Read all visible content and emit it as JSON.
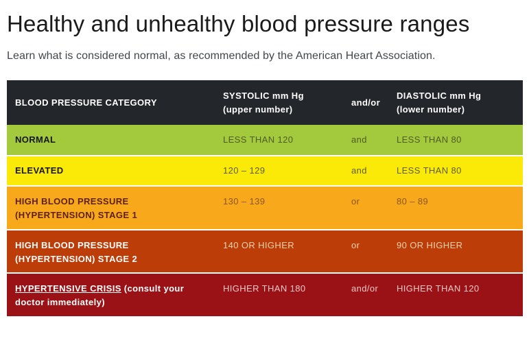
{
  "page": {
    "title": "Healthy and unhealthy blood pressure ranges",
    "subtitle": "Learn what is considered normal, as recommended by the American Heart Association.",
    "colors": {
      "background": "#ffffff",
      "title_text": "#1a1a1a",
      "subtitle_text": "#41464c"
    }
  },
  "table": {
    "header": {
      "category": "BLOOD PRESSURE CATEGORY",
      "systolic_line1": "SYSTOLIC mm Hg",
      "systolic_line2": "(upper number)",
      "connector": "and/or",
      "diastolic_line1": "DIASTOLIC mm Hg",
      "diastolic_line2": "(lower number)"
    },
    "header_colors": {
      "bg": "#23262a",
      "text": "#ffffff"
    },
    "rows": [
      {
        "category_main": "NORMAL",
        "category_extra": "",
        "systolic": "LESS THAN 120",
        "connector": "and",
        "diastolic": "LESS THAN 80",
        "colors": {
          "bg": "#a3c93d",
          "category_text": "#161616",
          "value_text": "#4f5c25"
        }
      },
      {
        "category_main": "ELEVATED",
        "category_extra": "",
        "systolic": "120 – 129",
        "connector": "and",
        "diastolic": "LESS THAN 80",
        "colors": {
          "bg": "#fbe907",
          "category_text": "#161616",
          "value_text": "#5d5d20"
        }
      },
      {
        "category_main": "HIGH BLOOD PRESSURE (HYPERTENSION) STAGE 1",
        "category_extra": "",
        "systolic": "130 – 139",
        "connector": "or",
        "diastolic": "80 – 89",
        "colors": {
          "bg": "#f7a81b",
          "category_text": "#5e1f10",
          "value_text": "#8f5520"
        }
      },
      {
        "category_main": "HIGH BLOOD PRESSURE (HYPERTENSION) STAGE 2",
        "category_extra": "",
        "systolic": "140 OR HIGHER",
        "connector": "or",
        "diastolic": "90 OR HIGHER",
        "colors": {
          "bg": "#bd3d08",
          "category_text": "#ffffff",
          "value_text": "#f4d3ae"
        }
      },
      {
        "category_main": "HYPERTENSIVE CRISIS",
        "category_extra": " (consult your doctor immediately)",
        "systolic": "HIGHER THAN 180",
        "connector": "and/or",
        "diastolic": "HIGHER THAN 120",
        "colors": {
          "bg": "#9b1216",
          "category_text": "#ffffff",
          "value_text": "#eec6c6"
        }
      }
    ]
  }
}
